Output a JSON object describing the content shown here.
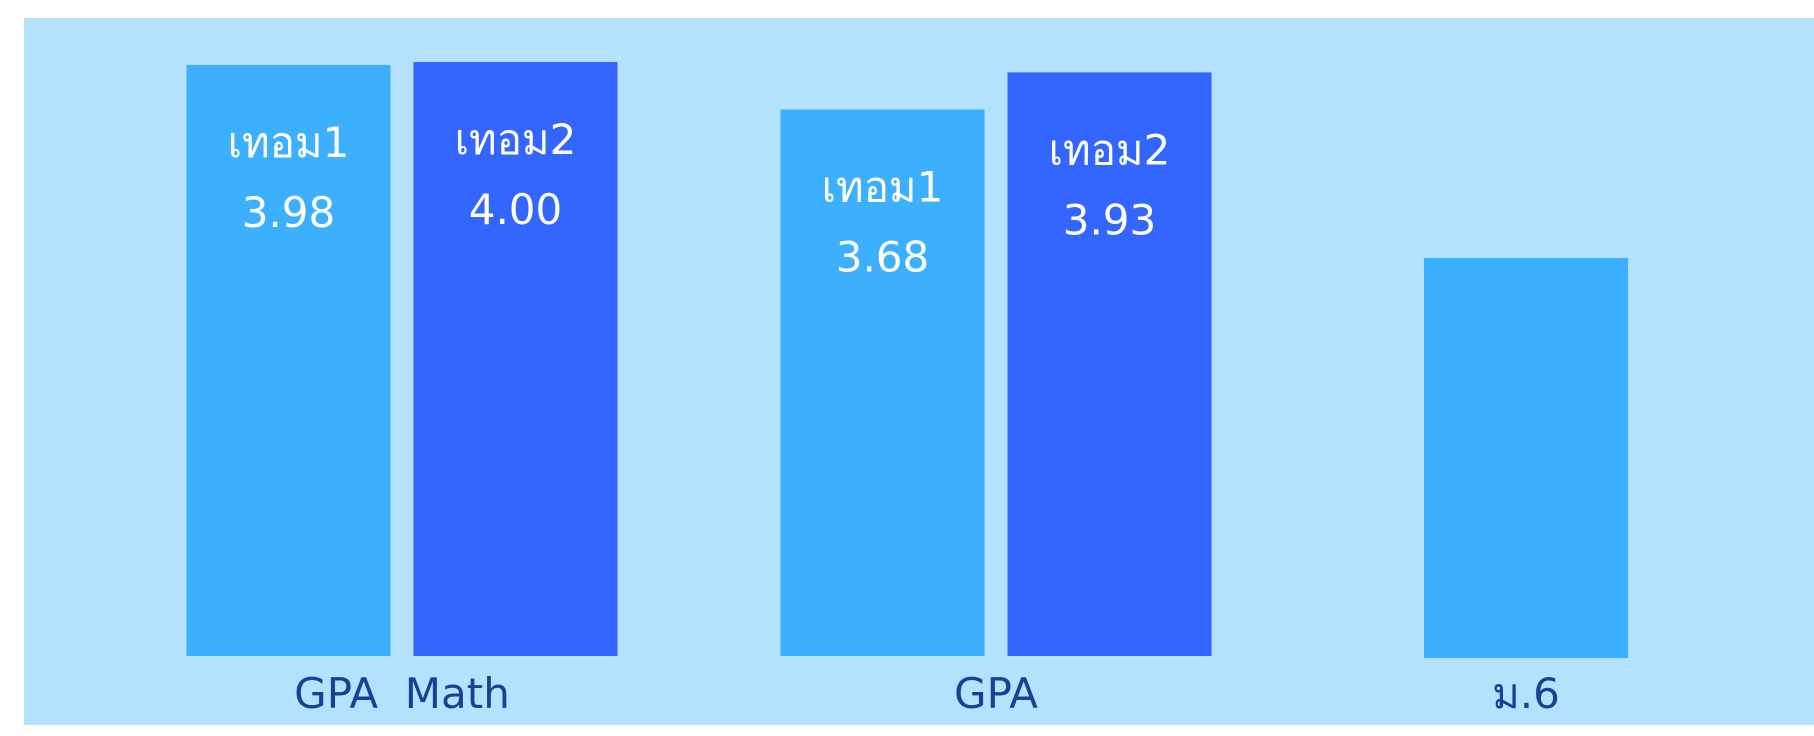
{
  "chart_data": {
    "type": "bar",
    "categories": [
      "GPA  Math",
      "GPA",
      "ม.6"
    ],
    "series": [
      {
        "values": [
          3.98,
          3.68,
          null
        ],
        "labels": [
          "เทอม1",
          "เทอม1",
          ""
        ]
      },
      {
        "values": [
          4.0,
          3.93,
          null
        ],
        "labels": [
          "เทอม2",
          "เทอม2",
          ""
        ]
      }
    ],
    "placeholder_bar_category": "ม.6",
    "ylim": [
      0,
      4.0
    ],
    "grid": false,
    "legend": "none",
    "colors": {
      "background": "#b4e1fd",
      "series1": "#3cb0fe",
      "series2": "#3366fe",
      "bar_label_text": "#ffffff",
      "category_label_text": "#1c3f96"
    }
  }
}
